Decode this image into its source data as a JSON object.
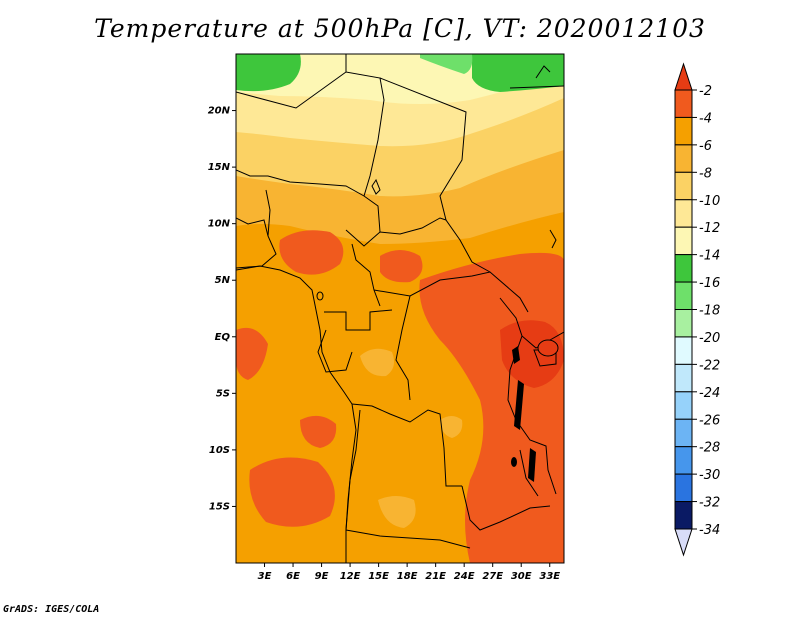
{
  "title": "Temperature at 500hPa [C], VT: 2020012103",
  "credit": "GrADS: IGES/COLA",
  "map": {
    "lon_range": [
      0,
      34.5
    ],
    "lat_range": [
      -20,
      25
    ],
    "lat_ticks": [
      {
        "value": 20,
        "label": "20N"
      },
      {
        "value": 15,
        "label": "15N"
      },
      {
        "value": 10,
        "label": "10N"
      },
      {
        "value": 5,
        "label": "5N"
      },
      {
        "value": 0,
        "label": "EQ"
      },
      {
        "value": -5,
        "label": "5S"
      },
      {
        "value": -10,
        "label": "10S"
      },
      {
        "value": -15,
        "label": "15S"
      }
    ],
    "lon_ticks": [
      {
        "value": 3,
        "label": "3E"
      },
      {
        "value": 6,
        "label": "6E"
      },
      {
        "value": 9,
        "label": "9E"
      },
      {
        "value": 12,
        "label": "12E"
      },
      {
        "value": 15,
        "label": "15E"
      },
      {
        "value": 18,
        "label": "18E"
      },
      {
        "value": 21,
        "label": "21E"
      },
      {
        "value": 24,
        "label": "24E"
      },
      {
        "value": 27,
        "label": "27E"
      },
      {
        "value": 30,
        "label": "30E"
      },
      {
        "value": 33,
        "label": "33E"
      }
    ]
  },
  "colorbar": {
    "levels": [
      {
        "label": "-2",
        "color": "#f05a1e"
      },
      {
        "label": "-4",
        "color": "#f5a000"
      },
      {
        "label": "-6",
        "color": "#f8b432"
      },
      {
        "label": "-8",
        "color": "#fbd264"
      },
      {
        "label": "-10",
        "color": "#fee896"
      },
      {
        "label": "-12",
        "color": "#fdf7b4"
      },
      {
        "label": "-14",
        "color": "#3ec63c"
      },
      {
        "label": "-16",
        "color": "#6ee06a"
      },
      {
        "label": "-18",
        "color": "#a8f0a0"
      },
      {
        "label": "-20",
        "color": "#e0faff"
      },
      {
        "label": "-22",
        "color": "#c0e8fb"
      },
      {
        "label": "-24",
        "color": "#96d2fa"
      },
      {
        "label": "-26",
        "color": "#6cb4f4"
      },
      {
        "label": "-28",
        "color": "#4696ec"
      },
      {
        "label": "-30",
        "color": "#2a74e0"
      },
      {
        "label": "-32",
        "color": "#1852c8"
      },
      {
        "label": "-34",
        "color": "#0e3aa0"
      }
    ],
    "top_color": "#e63c14",
    "bottom_color": "#d8dcf8",
    "under_color": "#0a1a64"
  }
}
